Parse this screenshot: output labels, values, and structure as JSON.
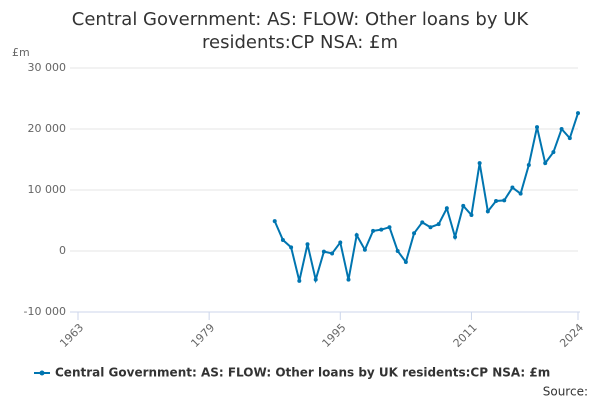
{
  "chart_data": {
    "type": "line",
    "title": "Central Government: AS: FLOW: Other loans by UK residents:CP NSA: £m",
    "y_label": "£m",
    "source": "Source:",
    "x": [
      1987,
      1988,
      1989,
      1990,
      1991,
      1992,
      1993,
      1994,
      1995,
      1996,
      1997,
      1998,
      1999,
      2000,
      2001,
      2002,
      2003,
      2004,
      2005,
      2006,
      2007,
      2008,
      2009,
      2010,
      2011,
      2012,
      2013,
      2014,
      2015,
      2016,
      2017,
      2018,
      2019,
      2020,
      2021,
      2022,
      2023,
      2024
    ],
    "series": [
      {
        "name": "Central Government: AS: FLOW: Other loans by UK residents:CP NSA: £m",
        "color": "#0075b0",
        "values": [
          4900,
          1800,
          600,
          -4900,
          1100,
          -4700,
          -100,
          -400,
          1400,
          -4700,
          2600,
          200,
          3300,
          3500,
          3900,
          0,
          -1800,
          2900,
          4700,
          3900,
          4400,
          7000,
          2300,
          7400,
          5900,
          14400,
          6500,
          8200,
          8300,
          10400,
          9400,
          14100,
          20300,
          14400,
          16200,
          20000,
          18500,
          22600
        ]
      }
    ],
    "xlim": [
      1963,
      2024
    ],
    "xticks": [
      1963,
      1979,
      1995,
      2011,
      2024
    ],
    "ylim": [
      -10000,
      30000
    ],
    "yticks": [
      {
        "value": -10000,
        "label": "-10 000"
      },
      {
        "value": 0,
        "label": "0"
      },
      {
        "value": 10000,
        "label": "10 000"
      },
      {
        "value": 20000,
        "label": "20 000"
      },
      {
        "value": 30000,
        "label": "30 000"
      }
    ],
    "grid": true
  }
}
